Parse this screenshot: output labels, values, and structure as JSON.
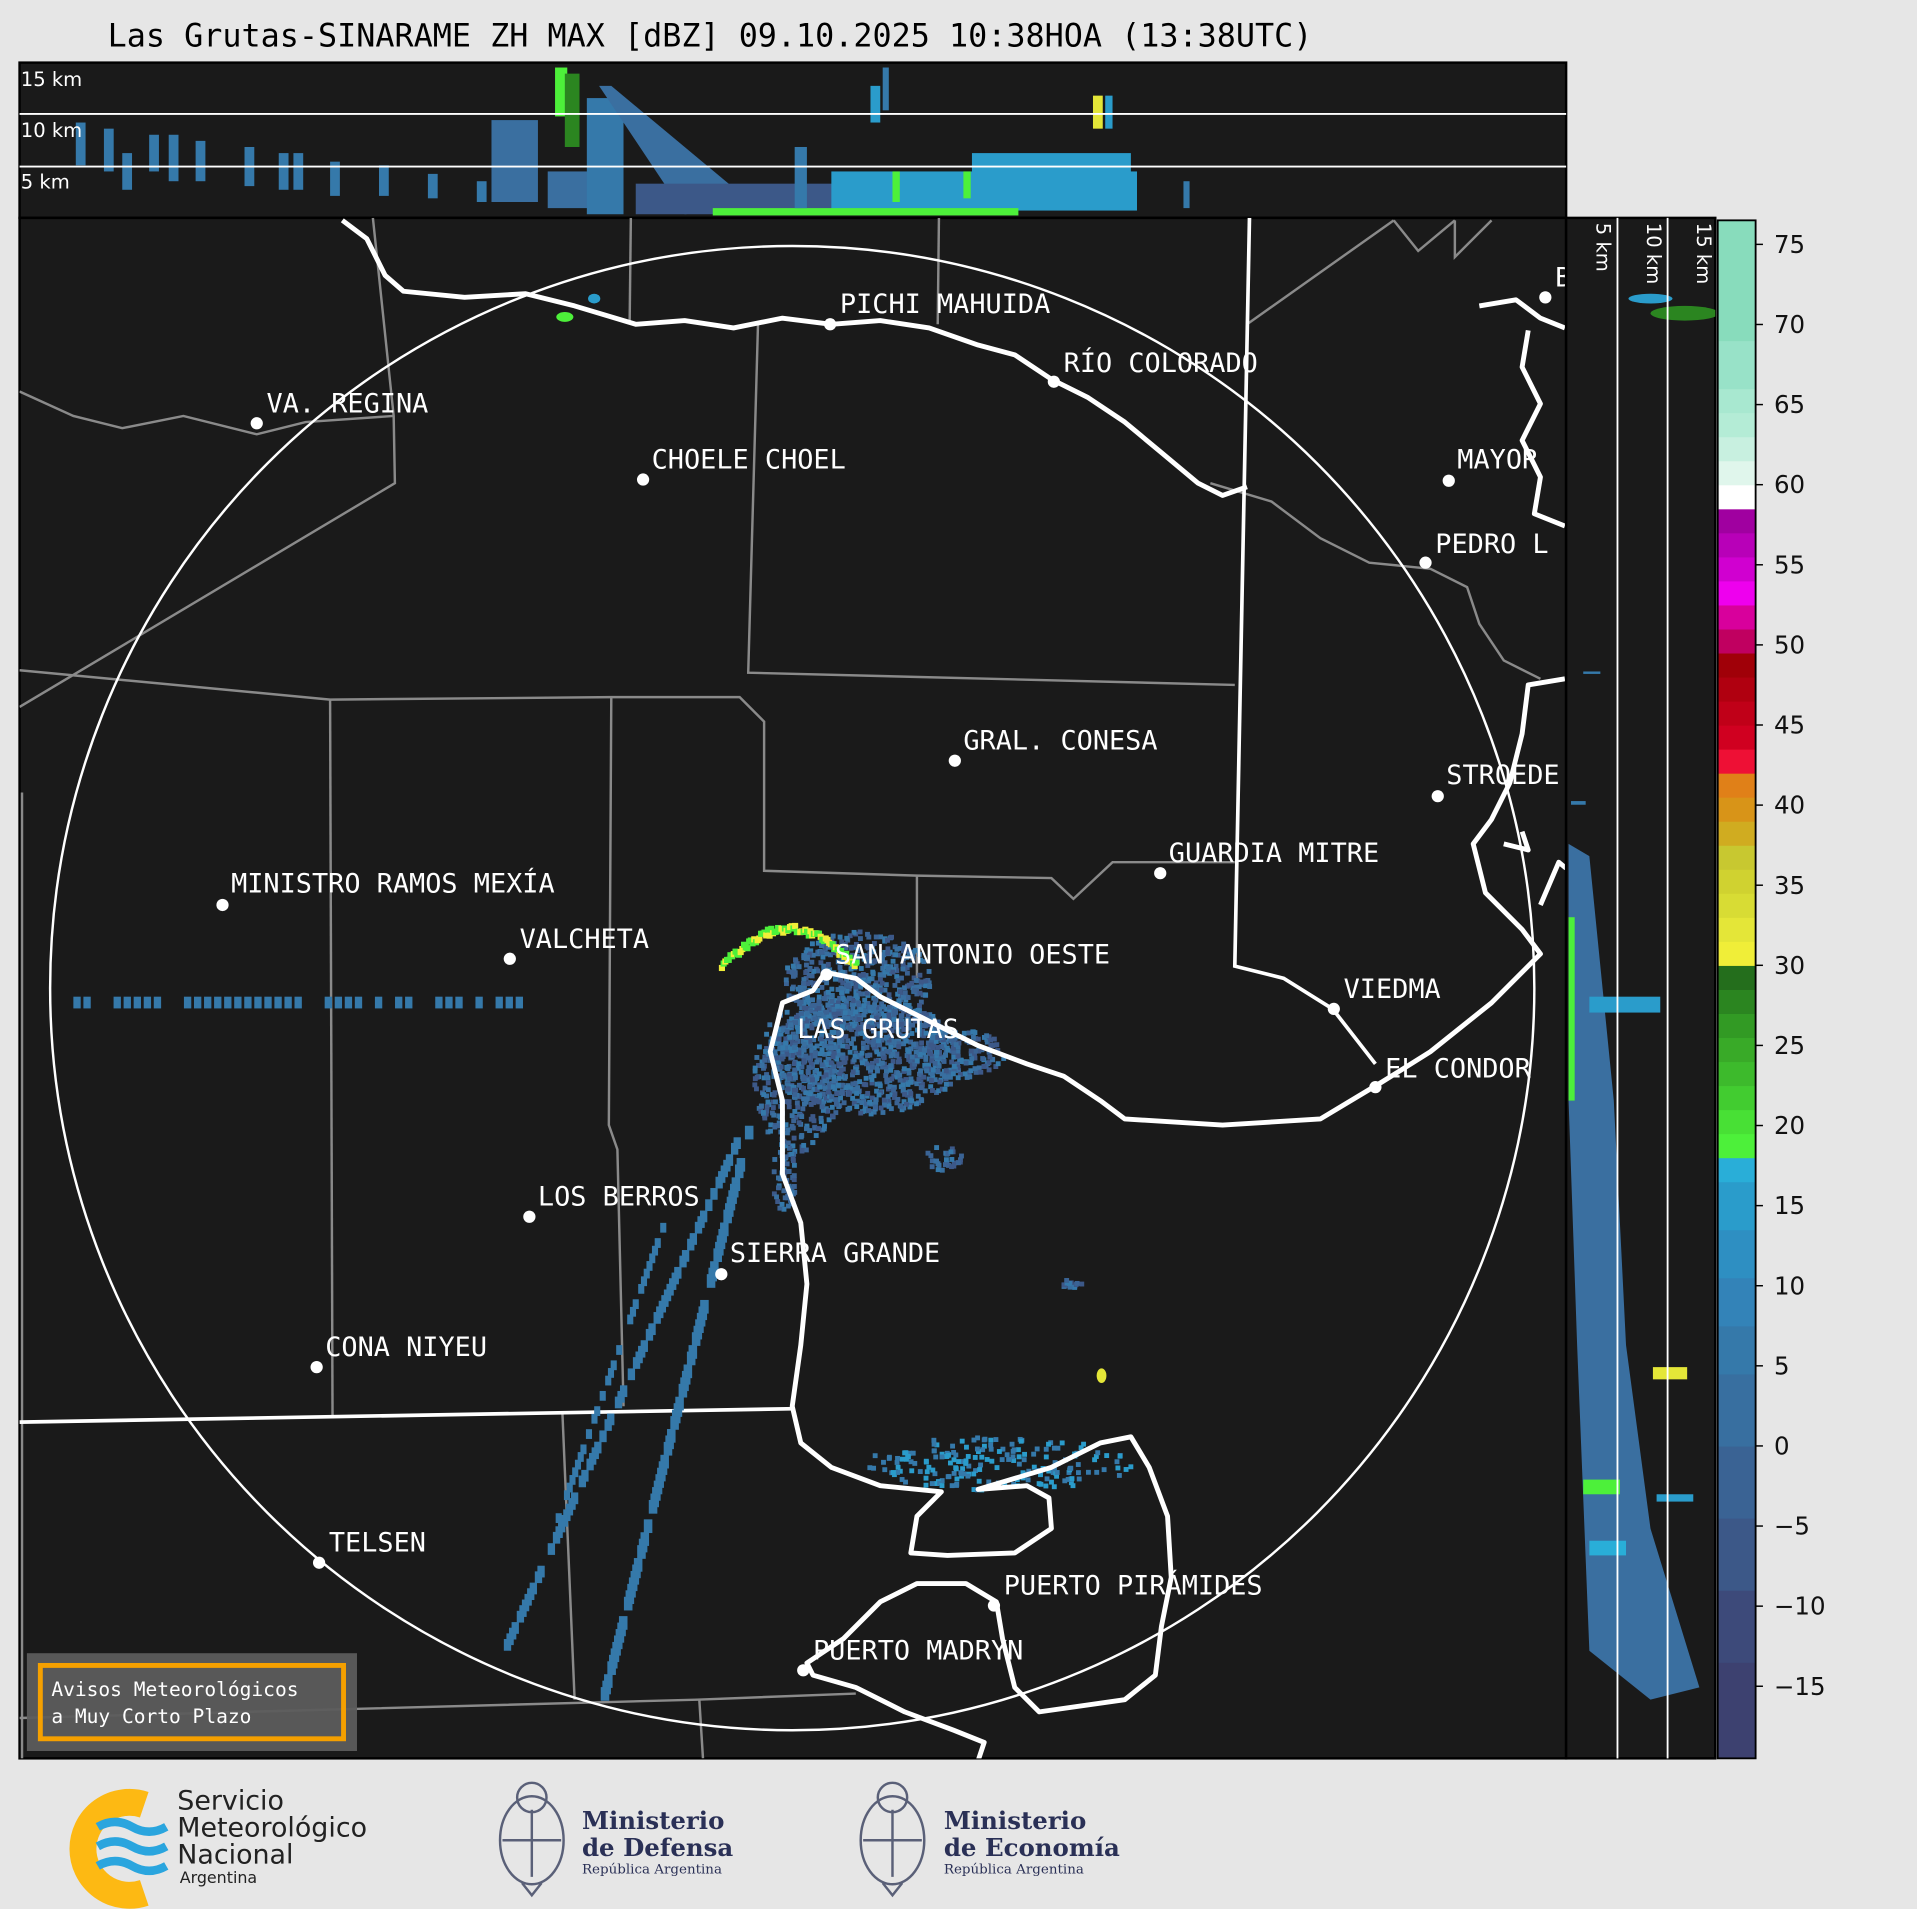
{
  "title": "Las Grutas-SINARAME ZH MAX [dBZ] 09.10.2025 10:38HOA (13:38UTC)",
  "top_panel": {
    "height_labels": [
      "15 km",
      "10 km",
      "5 km"
    ]
  },
  "side_panel": {
    "height_labels": [
      "5 km",
      "10 km",
      "15 km"
    ]
  },
  "map": {
    "cities": [
      "PICHI MAHUIDA",
      "RÍO COLORADO",
      "VA. REGINA",
      "CHOELE CHOEL",
      "MAYOR",
      "PEDRO L",
      "GRAL. CONESA",
      "STROEDE",
      "GUARDIA MITRE",
      "MINISTRO RAMOS MEXÍA",
      "VALCHETA",
      "SAN ANTONIO OESTE",
      "LAS GRUTAS",
      "VIEDMA",
      "EL CONDOR",
      "LOS BERROS",
      "SIERRA GRANDE",
      "CONA NIYEU",
      "TELSEN",
      "PUERTO PIRÁMIDES",
      "PUERTO MADRYN",
      "B"
    ],
    "warning_box": {
      "line1": "Avisos Meteorológicos",
      "line2": "a Muy Corto Plazo",
      "border_color": "#f5a000"
    }
  },
  "colorbar": {
    "unit": "dBZ",
    "range": [
      -19.5,
      76.5
    ],
    "ticks": [
      75,
      70,
      65,
      60,
      55,
      50,
      45,
      40,
      35,
      30,
      25,
      20,
      15,
      10,
      5,
      0,
      -5,
      -10,
      -15
    ],
    "tick_labels": [
      "75",
      "70",
      "65",
      "60",
      "55",
      "50",
      "45",
      "40",
      "35",
      "30",
      "25",
      "20",
      "15",
      "10",
      "5",
      "0",
      "−5",
      "−10",
      "−15"
    ],
    "bands": [
      [
        -19.5,
        -13.5,
        "#3d4170"
      ],
      [
        -13.5,
        -9,
        "#3d4a7a"
      ],
      [
        -9,
        -4.5,
        "#3c5888"
      ],
      [
        -4.5,
        0,
        "#3a6394"
      ],
      [
        0,
        4.5,
        "#386fa0"
      ],
      [
        4.5,
        7.5,
        "#3579aa"
      ],
      [
        7.5,
        10.5,
        "#3383b8"
      ],
      [
        10.5,
        13.5,
        "#2e8fc2"
      ],
      [
        13.5,
        16.5,
        "#2a9ccb"
      ],
      [
        16.5,
        18,
        "#29aed8"
      ],
      [
        18,
        19.5,
        "#4df03a"
      ],
      [
        19.5,
        21,
        "#48e035"
      ],
      [
        21,
        22.5,
        "#42cc30"
      ],
      [
        22.5,
        24,
        "#3dba2c"
      ],
      [
        24,
        25.5,
        "#39aa28"
      ],
      [
        25.5,
        27,
        "#329a24"
      ],
      [
        27,
        28.5,
        "#2b8520"
      ],
      [
        28.5,
        30,
        "#246e1c"
      ],
      [
        30,
        31.5,
        "#f0ee38"
      ],
      [
        31.5,
        33,
        "#e4e638"
      ],
      [
        33,
        34.5,
        "#d8dc34"
      ],
      [
        34.5,
        36,
        "#d0d230"
      ],
      [
        36,
        37.5,
        "#c8c830"
      ],
      [
        37.5,
        39,
        "#d0ac20"
      ],
      [
        39,
        40.5,
        "#d89418"
      ],
      [
        40.5,
        42,
        "#e08018"
      ],
      [
        42,
        43.5,
        "#ee1035"
      ],
      [
        43.5,
        45,
        "#d00020"
      ],
      [
        45,
        46.5,
        "#c00018"
      ],
      [
        46.5,
        48,
        "#b00010"
      ],
      [
        48,
        49.5,
        "#a00008"
      ],
      [
        49.5,
        51,
        "#c00060"
      ],
      [
        51,
        52.5,
        "#d8009c"
      ],
      [
        52.5,
        54,
        "#ee00ee"
      ],
      [
        54,
        55.5,
        "#d000d0"
      ],
      [
        55.5,
        57,
        "#b800b8"
      ],
      [
        57,
        58.5,
        "#a000a0"
      ],
      [
        58.5,
        60,
        "#ffffff"
      ],
      [
        60,
        61.5,
        "#e0f6ec"
      ],
      [
        61.5,
        63,
        "#c8f0e0"
      ],
      [
        63,
        64.5,
        "#b4ecd6"
      ],
      [
        64.5,
        66,
        "#a8e8d0"
      ],
      [
        66,
        69,
        "#98e2c8"
      ],
      [
        69,
        76.5,
        "#88dcbc"
      ]
    ]
  },
  "logos": {
    "smn": {
      "line1": "Servicio",
      "line2": "Meteorológico",
      "line3": "Nacional",
      "line4": "Argentina",
      "ring_color": "#fdb913",
      "wave_color": "#2aa5de"
    },
    "defensa": {
      "line1": "Ministerio",
      "line2": "de Defensa",
      "line3": "República Argentina"
    },
    "economia": {
      "line1": "Ministerio",
      "line2": "de Economía",
      "line3": "República Argentina"
    }
  }
}
